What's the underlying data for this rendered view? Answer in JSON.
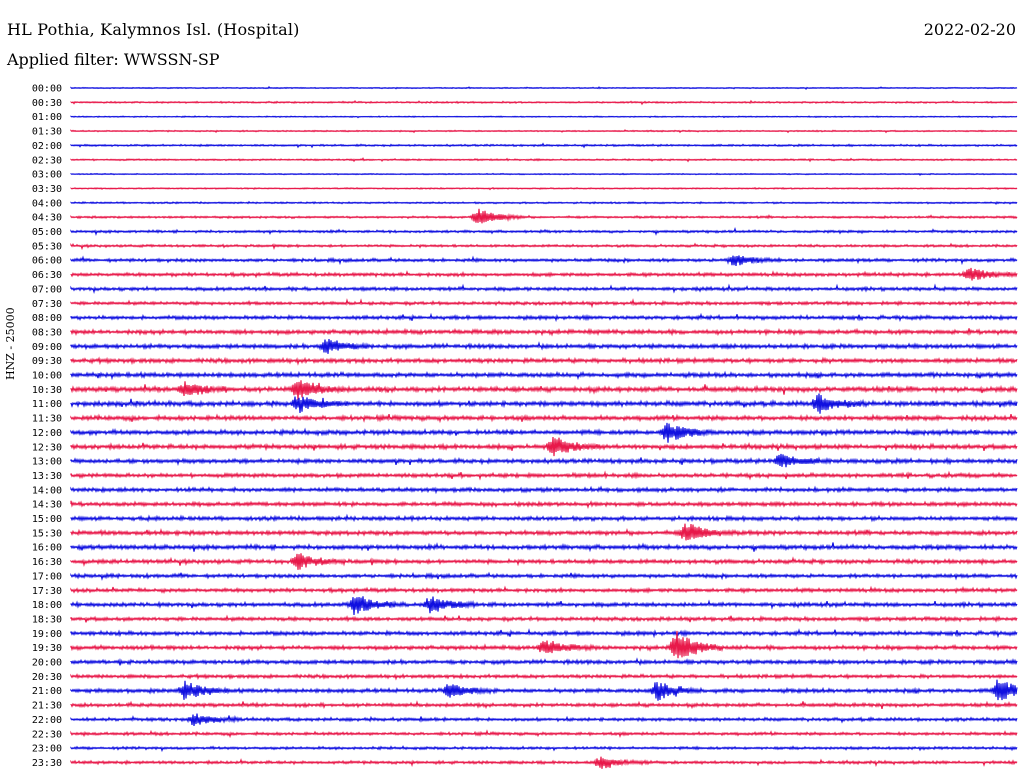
{
  "header": {
    "station": "HL Pothia, Kalymnos Isl. (Hospital)",
    "date": "2022-02-20",
    "filter": "Applied filter: WWSSN-SP"
  },
  "chart_data": {
    "type": "line",
    "ylabel": "HNZ - 25000",
    "rows": [
      "00:00",
      "00:30",
      "01:00",
      "01:30",
      "02:00",
      "02:30",
      "03:00",
      "03:30",
      "04:00",
      "04:30",
      "05:00",
      "05:30",
      "06:00",
      "06:30",
      "07:00",
      "07:30",
      "08:00",
      "08:30",
      "09:00",
      "09:30",
      "10:00",
      "10:30",
      "11:00",
      "11:30",
      "12:00",
      "12:30",
      "13:00",
      "13:30",
      "14:00",
      "14:30",
      "15:00",
      "15:30",
      "16:00",
      "16:30",
      "17:00",
      "17:30",
      "18:00",
      "18:30",
      "19:00",
      "19:30",
      "20:00",
      "20:30",
      "21:00",
      "21:30",
      "22:00",
      "22:30",
      "23:00",
      "23:30"
    ],
    "colors": [
      "#1010e0",
      "#e8194a"
    ],
    "noise_level": [
      0.4,
      0.6,
      0.4,
      0.5,
      0.7,
      0.6,
      0.4,
      0.5,
      0.6,
      0.8,
      0.9,
      0.9,
      1.2,
      1.3,
      1.3,
      1.2,
      1.4,
      1.6,
      1.6,
      1.6,
      1.7,
      1.8,
      1.8,
      1.7,
      1.7,
      1.7,
      1.6,
      1.5,
      1.5,
      1.5,
      1.5,
      1.6,
      1.6,
      1.5,
      1.4,
      1.4,
      1.5,
      1.4,
      1.5,
      1.5,
      1.5,
      1.3,
      1.5,
      1.3,
      1.2,
      1.1,
      1.0,
      1.1
    ],
    "events": [
      {
        "row": 9,
        "t": 0.43,
        "amp": 9
      },
      {
        "row": 12,
        "t": 0.7,
        "amp": 6
      },
      {
        "row": 13,
        "t": 0.95,
        "amp": 7
      },
      {
        "row": 18,
        "t": 0.27,
        "amp": 8
      },
      {
        "row": 21,
        "t": 0.24,
        "amp": 10
      },
      {
        "row": 21,
        "t": 0.12,
        "amp": 7
      },
      {
        "row": 22,
        "t": 0.24,
        "amp": 8
      },
      {
        "row": 22,
        "t": 0.79,
        "amp": 9
      },
      {
        "row": 24,
        "t": 0.63,
        "amp": 11
      },
      {
        "row": 25,
        "t": 0.51,
        "amp": 10
      },
      {
        "row": 26,
        "t": 0.75,
        "amp": 7
      },
      {
        "row": 31,
        "t": 0.65,
        "amp": 11
      },
      {
        "row": 33,
        "t": 0.24,
        "amp": 8
      },
      {
        "row": 36,
        "t": 0.3,
        "amp": 10
      },
      {
        "row": 36,
        "t": 0.38,
        "amp": 9
      },
      {
        "row": 39,
        "t": 0.5,
        "amp": 8
      },
      {
        "row": 39,
        "t": 0.64,
        "amp": 16
      },
      {
        "row": 42,
        "t": 0.12,
        "amp": 9
      },
      {
        "row": 42,
        "t": 0.4,
        "amp": 8
      },
      {
        "row": 42,
        "t": 0.62,
        "amp": 10
      },
      {
        "row": 42,
        "t": 0.98,
        "amp": 13
      },
      {
        "row": 44,
        "t": 0.13,
        "amp": 6
      },
      {
        "row": 47,
        "t": 0.56,
        "amp": 6
      }
    ]
  }
}
